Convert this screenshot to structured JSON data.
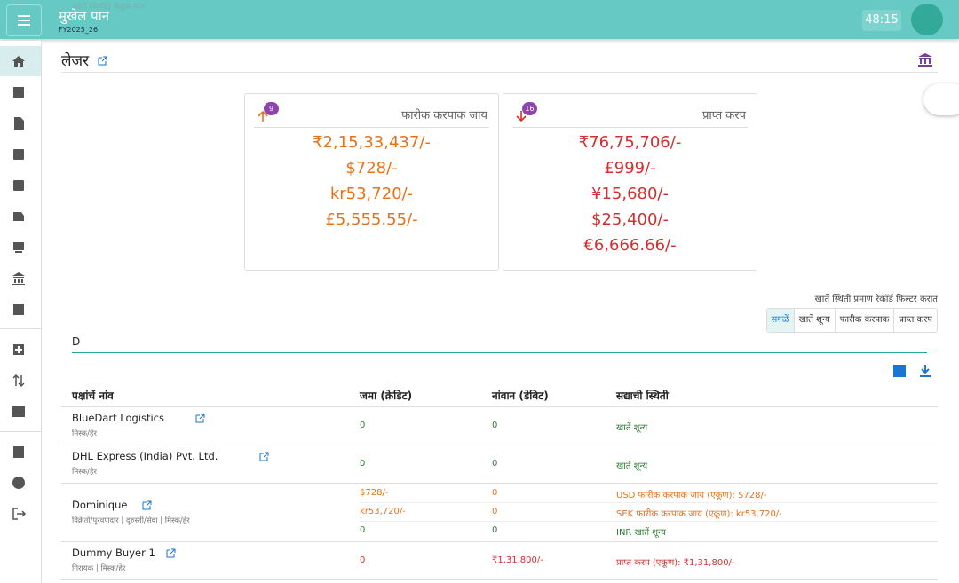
{
  "header": {
    "hint": "सांदी (रेकॉर्ड) मेळूंक नात",
    "title": "मुखेल पान",
    "subtitle": "FY2025_26",
    "timer": "48:15"
  },
  "page": {
    "title": "लेजर"
  },
  "cards": [
    {
      "badge": "9",
      "title": "फारीक करपाक जाय",
      "color": "#e8711a",
      "amounts": [
        "₹2,15,33,437/-",
        "$728/-",
        "kr53,720/-",
        "£5,555.55/-"
      ]
    },
    {
      "badge": "16",
      "title": "प्राप्त करप",
      "color": "#d32f2f",
      "amounts": [
        "₹76,75,706/-",
        "£999/-",
        "¥15,680/-",
        "$25,400/-",
        "€6,666.66/-"
      ]
    }
  ],
  "filter": {
    "caption": "खातें स्थिती प्रमाण रेकॉर्ड फिल्टर करात",
    "options": [
      "सगळें",
      "खातें शून्य",
      "फारीक करपाक",
      "प्राप्त करप"
    ]
  },
  "search": {
    "value": "D"
  },
  "table": {
    "headers": [
      "पक्षांचें नांव",
      "जमा (क्रेडिट)",
      "नांवान (डेबिट)",
      "सद्याची स्थिती"
    ],
    "rows": [
      {
        "name": "BlueDart Logistics",
        "tags": "मिस्क/हेर",
        "lines": [
          {
            "credit": "0",
            "debit": "0",
            "status": "खातें शून्य",
            "color": "#2e7d32"
          }
        ]
      },
      {
        "name": "DHL Express (India) Pvt. Ltd.",
        "tags": "मिस्क/हेर",
        "lines": [
          {
            "credit": "0",
            "debit": "0",
            "status": "खातें शून्य",
            "color": "#2e7d32"
          }
        ]
      },
      {
        "name": "Dominique",
        "tags": "विक्रेतो/पुरवणदार | दुरुस्ती/सेवा | मिस्क/हेर",
        "lines": [
          {
            "credit": "$728/-",
            "debit": "0",
            "status": "USD फारीक करपाक जाय (एकूण): $728/-",
            "color": "#e8711a"
          },
          {
            "credit": "kr53,720/-",
            "debit": "0",
            "status": "SEK फारीक करपाक जाय (एकूण): kr53,720/-",
            "color": "#e8711a"
          },
          {
            "credit": "0",
            "debit": "0",
            "status": "INR खातें शून्य",
            "color": "#2e7d32"
          }
        ]
      },
      {
        "name": "Dummy Buyer 1",
        "tags": "गिरायक | मिस्क/हेर",
        "lines": [
          {
            "credit": "0",
            "debit": "₹1,31,800/-",
            "status": "प्राप्त करप (एकूण): ₹1,31,800/-",
            "color": "#d32f2f"
          }
        ]
      }
    ]
  }
}
